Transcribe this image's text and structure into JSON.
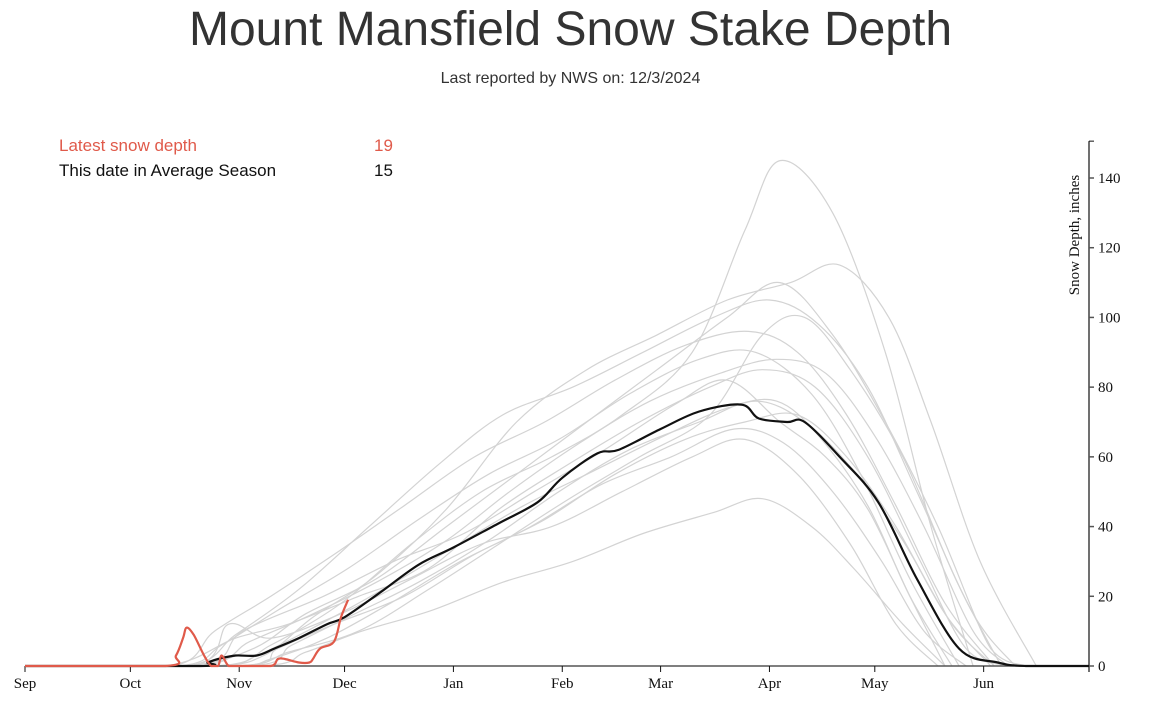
{
  "header": {
    "title": "Mount Mansfield Snow Stake Depth",
    "subtitle": "Last reported by NWS on: 12/3/2024"
  },
  "legend": {
    "latest_label": "Latest snow depth",
    "latest_value": "19",
    "average_label": "This date in Average Season",
    "average_value": "15"
  },
  "colors": {
    "current": "#e05a4a",
    "average": "#111111",
    "history": "#d3d3d3",
    "axis": "#111111"
  },
  "chart_data": {
    "type": "line",
    "title": "Mount Mansfield Snow Stake Depth",
    "subtitle": "Last reported by NWS on: 12/3/2024",
    "xlabel": "",
    "ylabel": "Snow Depth, inches",
    "x_unit": "days since Sep 1",
    "xlim": [
      0,
      303
    ],
    "ylim": [
      0,
      150
    ],
    "y_ticks": [
      0,
      20,
      40,
      60,
      80,
      100,
      120,
      140
    ],
    "x_ticks": [
      {
        "label": "Sep",
        "day": 0
      },
      {
        "label": "Oct",
        "day": 30
      },
      {
        "label": "Nov",
        "day": 61
      },
      {
        "label": "Dec",
        "day": 91
      },
      {
        "label": "Jan",
        "day": 122
      },
      {
        "label": "Feb",
        "day": 153
      },
      {
        "label": "Mar",
        "day": 181
      },
      {
        "label": "Apr",
        "day": 212
      },
      {
        "label": "May",
        "day": 242
      },
      {
        "label": "Jun",
        "day": 273
      }
    ],
    "y_axis_position": "right",
    "grid": false,
    "legend_position": "top-left",
    "series": [
      {
        "name": "This date in Average Season",
        "role": "average",
        "x": [
          0,
          50,
          52,
          55,
          60,
          66,
          71,
          78,
          86,
          91,
          101,
          112,
          122,
          135,
          146,
          153,
          163,
          169,
          181,
          192,
          204,
          209,
          217,
          222,
          232,
          243,
          254,
          266,
          277,
          285,
          303
        ],
        "y": [
          0,
          0,
          1,
          2,
          3,
          3,
          5,
          8,
          12,
          14,
          21,
          29,
          34,
          41,
          47,
          54,
          61,
          62,
          68,
          73,
          75,
          71,
          70,
          70,
          60,
          47,
          25,
          5,
          1,
          0,
          0
        ]
      },
      {
        "name": "Latest snow depth",
        "role": "current",
        "x": [
          0,
          40,
          43,
          45,
          46,
          48,
          51,
          53,
          55,
          56,
          58,
          61,
          70,
          72,
          74,
          78,
          81,
          82,
          84,
          88,
          90,
          92
        ],
        "y": [
          0,
          0,
          3,
          8,
          11,
          9,
          3,
          0,
          0,
          3,
          0,
          0,
          0,
          2,
          2,
          1,
          1,
          2,
          5,
          7,
          14,
          19
        ]
      }
    ],
    "background_series_note": "Historical seasons drawn as light gray lines",
    "historical_seasons": [
      {
        "x": [
          0,
          45,
          65,
          80,
          100,
          120,
          140,
          160,
          180,
          200,
          215,
          230,
          245,
          260,
          275,
          285
        ],
        "y": [
          0,
          0,
          5,
          15,
          25,
          40,
          55,
          70,
          85,
          100,
          110,
          95,
          70,
          40,
          5,
          0
        ]
      },
      {
        "x": [
          0,
          40,
          60,
          75,
          95,
          115,
          135,
          155,
          175,
          195,
          210,
          225,
          240,
          255,
          268,
          280
        ],
        "y": [
          0,
          0,
          8,
          12,
          20,
          28,
          45,
          58,
          70,
          80,
          85,
          80,
          60,
          30,
          5,
          0
        ]
      },
      {
        "x": [
          0,
          55,
          70,
          90,
          110,
          130,
          150,
          170,
          190,
          205,
          215,
          230,
          245,
          258,
          270
        ],
        "y": [
          0,
          0,
          6,
          18,
          35,
          50,
          60,
          72,
          90,
          125,
          145,
          130,
          90,
          40,
          0
        ]
      },
      {
        "x": [
          0,
          50,
          62,
          85,
          105,
          125,
          145,
          165,
          185,
          200,
          215,
          228,
          240,
          252,
          262
        ],
        "y": [
          0,
          0,
          10,
          20,
          30,
          38,
          50,
          62,
          75,
          82,
          70,
          60,
          45,
          20,
          0
        ]
      },
      {
        "x": [
          0,
          60,
          75,
          95,
          115,
          135,
          155,
          175,
          195,
          210,
          222,
          235,
          250,
          265,
          278
        ],
        "y": [
          0,
          0,
          4,
          10,
          22,
          35,
          48,
          60,
          72,
          95,
          100,
          85,
          60,
          25,
          0
        ]
      },
      {
        "x": [
          0,
          48,
          58,
          70,
          90,
          110,
          130,
          150,
          170,
          190,
          205,
          220,
          235,
          248,
          260
        ],
        "y": [
          0,
          0,
          12,
          8,
          15,
          25,
          35,
          40,
          50,
          60,
          65,
          55,
          35,
          12,
          0
        ]
      },
      {
        "x": [
          0,
          52,
          68,
          82,
          100,
          120,
          140,
          160,
          180,
          200,
          218,
          232,
          246,
          258,
          272,
          288
        ],
        "y": [
          0,
          0,
          3,
          14,
          26,
          45,
          70,
          85,
          95,
          105,
          110,
          115,
          100,
          70,
          30,
          0
        ]
      },
      {
        "x": [
          0,
          62,
          72,
          88,
          108,
          128,
          148,
          168,
          188,
          205,
          220,
          234,
          248,
          262,
          275
        ],
        "y": [
          0,
          0,
          5,
          12,
          20,
          32,
          42,
          55,
          65,
          70,
          72,
          60,
          40,
          15,
          0
        ]
      },
      {
        "x": [
          0,
          44,
          56,
          72,
          92,
          112,
          132,
          152,
          172,
          192,
          208,
          224,
          238,
          252,
          266
        ],
        "y": [
          0,
          0,
          6,
          16,
          28,
          42,
          55,
          65,
          78,
          88,
          90,
          78,
          55,
          25,
          0
        ]
      },
      {
        "x": [
          0,
          58,
          70,
          86,
          104,
          124,
          144,
          164,
          184,
          202,
          216,
          230,
          244,
          256,
          268
        ],
        "y": [
          0,
          0,
          2,
          8,
          18,
          30,
          40,
          52,
          60,
          68,
          64,
          50,
          30,
          10,
          0
        ]
      },
      {
        "x": [
          0,
          46,
          60,
          78,
          98,
          118,
          136,
          156,
          176,
          196,
          212,
          226,
          240,
          254,
          270,
          282
        ],
        "y": [
          0,
          0,
          9,
          22,
          40,
          58,
          72,
          80,
          90,
          100,
          105,
          98,
          80,
          50,
          15,
          0
        ]
      },
      {
        "x": [
          0,
          66,
          80,
          96,
          116,
          136,
          156,
          176,
          196,
          210,
          224,
          236,
          250,
          262
        ],
        "y": [
          0,
          0,
          4,
          10,
          16,
          24,
          30,
          38,
          44,
          48,
          40,
          28,
          12,
          0
        ]
      },
      {
        "x": [
          0,
          50,
          64,
          80,
          100,
          120,
          138,
          158,
          178,
          198,
          214,
          228,
          242,
          256,
          270,
          280
        ],
        "y": [
          0,
          0,
          7,
          14,
          24,
          36,
          50,
          64,
          76,
          84,
          88,
          84,
          66,
          40,
          10,
          0
        ]
      },
      {
        "x": [
          0,
          54,
          66,
          84,
          102,
          122,
          142,
          162,
          182,
          200,
          214,
          226,
          240,
          252,
          264
        ],
        "y": [
          0,
          0,
          3,
          12,
          22,
          34,
          46,
          56,
          66,
          74,
          76,
          66,
          46,
          20,
          0
        ]
      },
      {
        "x": [
          0,
          42,
          54,
          70,
          88,
          108,
          128,
          148,
          168,
          188,
          206,
          220,
          234,
          248,
          262,
          276
        ],
        "y": [
          0,
          0,
          10,
          20,
          32,
          46,
          60,
          70,
          82,
          92,
          96,
          90,
          72,
          46,
          18,
          0
        ]
      },
      {
        "x": [
          0,
          64,
          76,
          92,
          112,
          132,
          152,
          172,
          192,
          208,
          222,
          236,
          250,
          264,
          276
        ],
        "y": [
          0,
          0,
          6,
          14,
          24,
          36,
          50,
          62,
          70,
          76,
          70,
          56,
          36,
          12,
          0
        ]
      }
    ]
  }
}
